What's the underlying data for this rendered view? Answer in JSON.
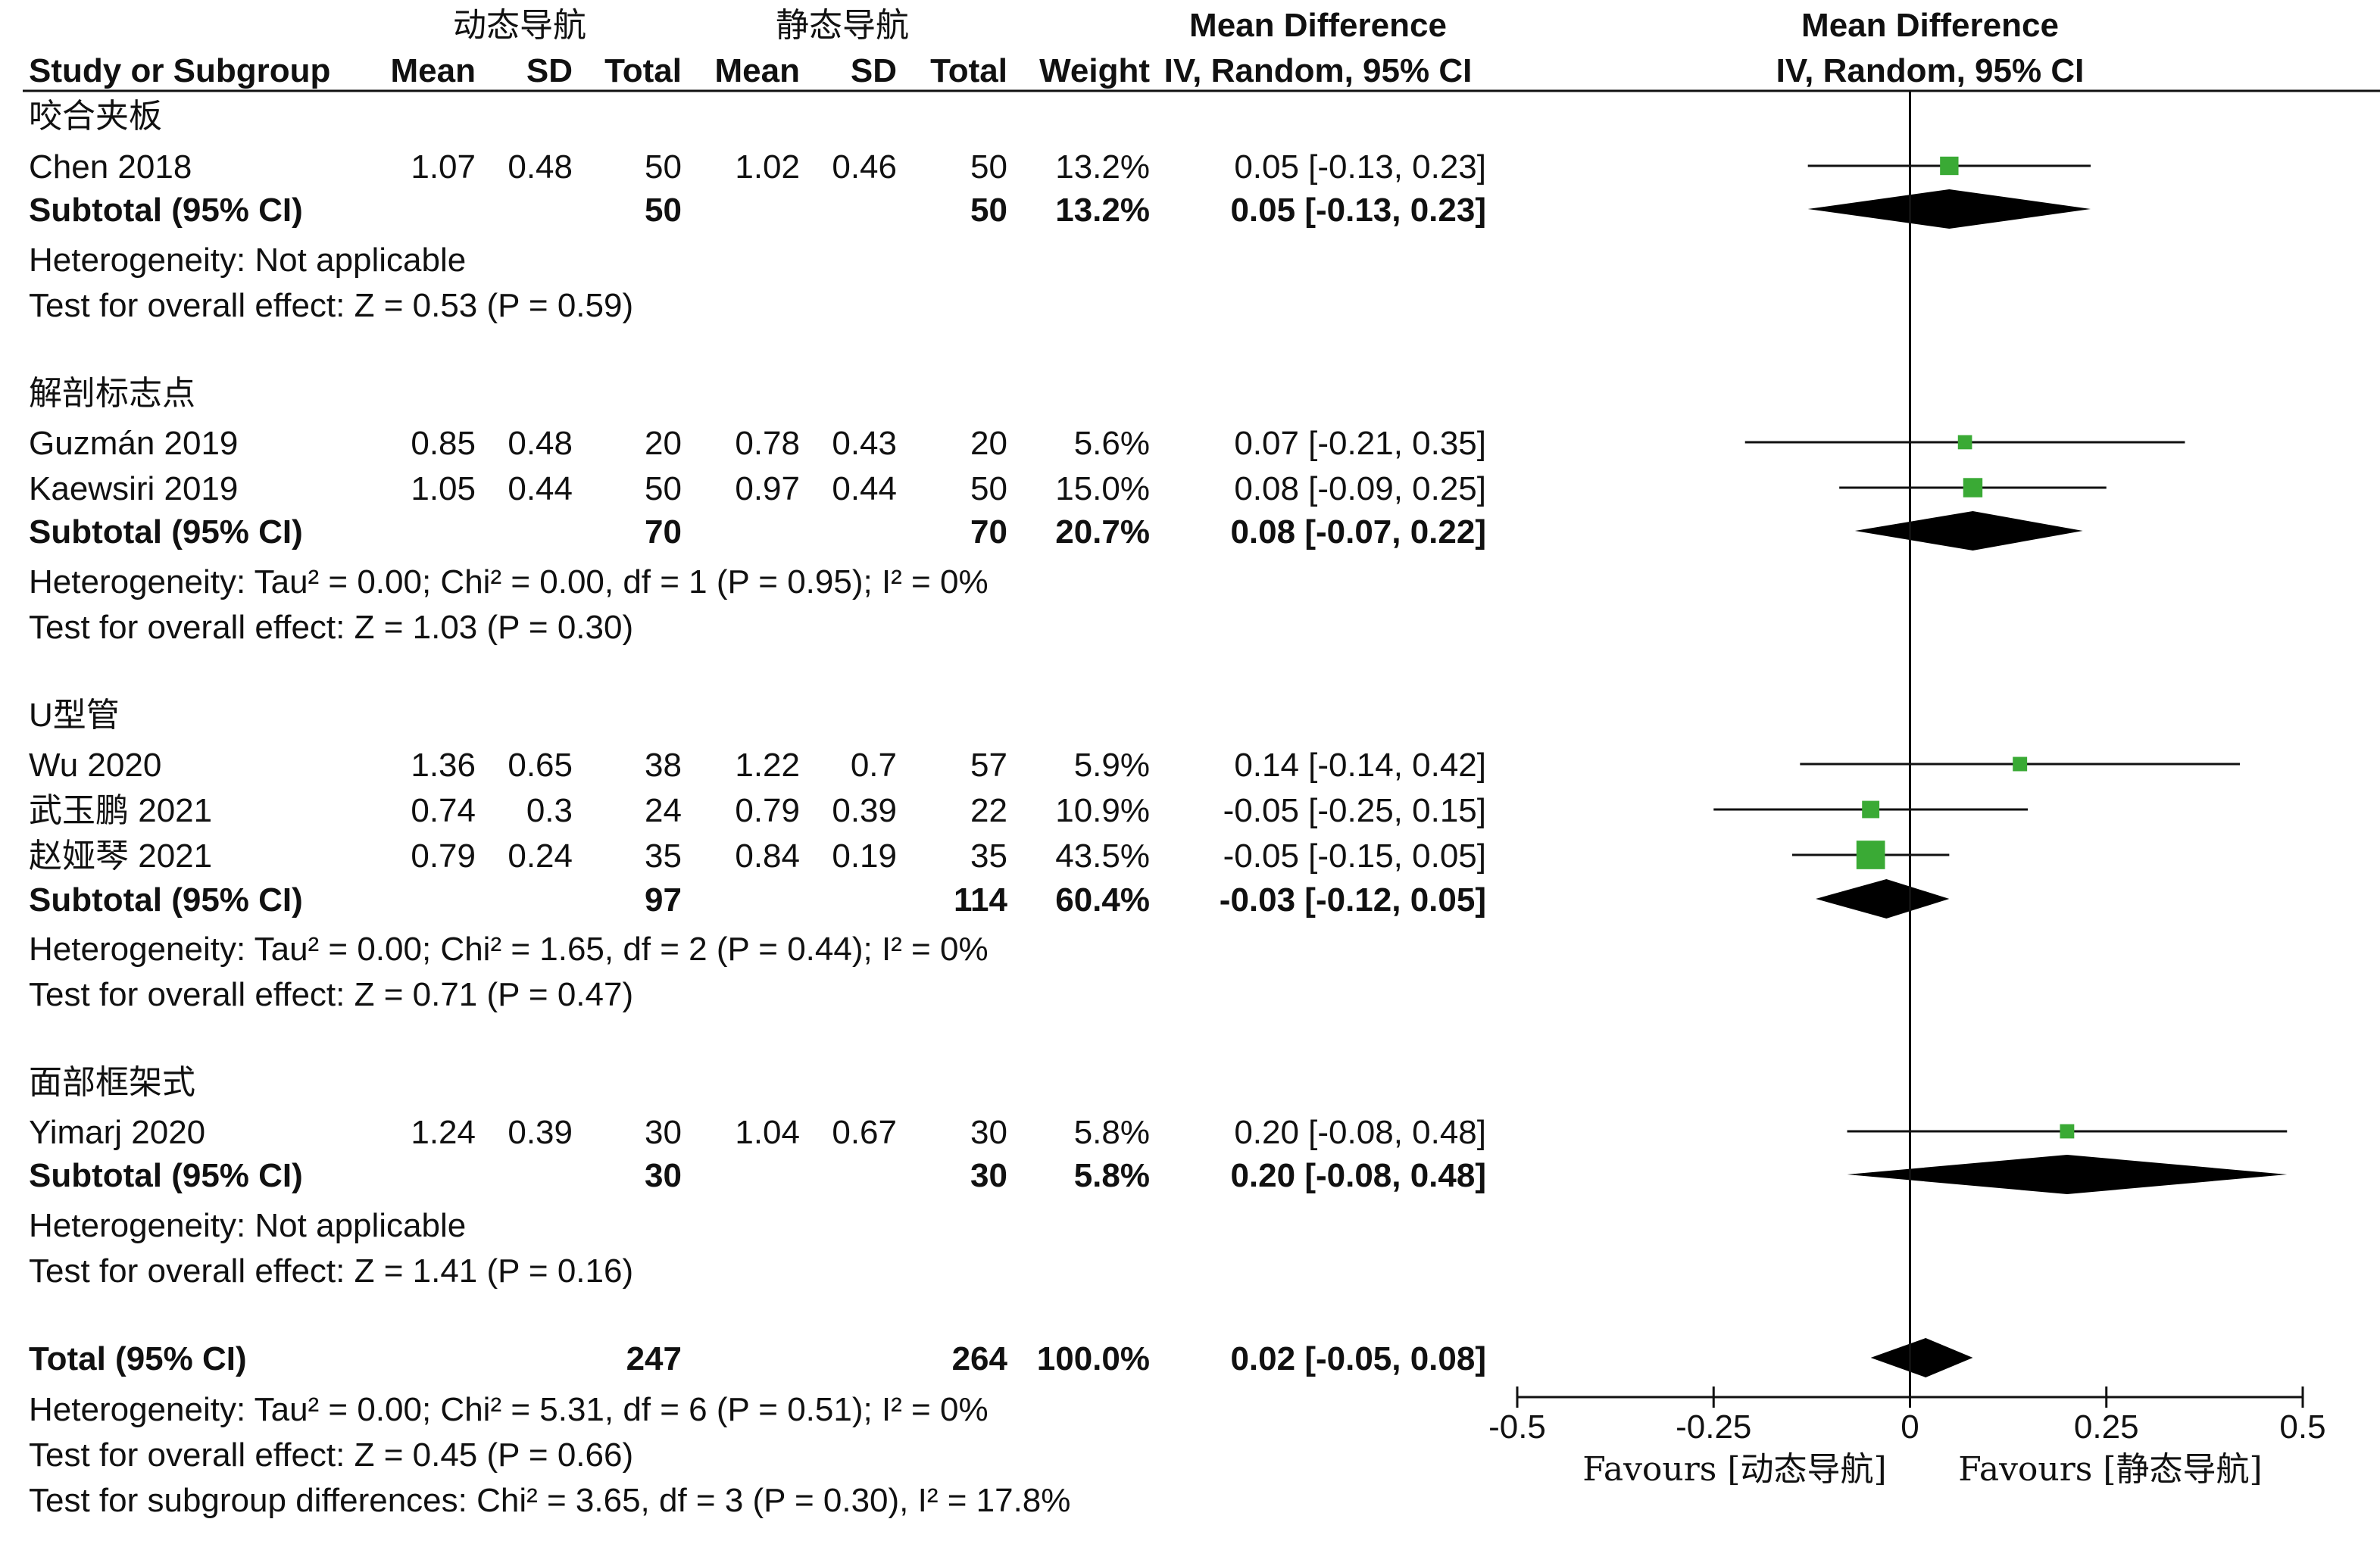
{
  "header": {
    "group1": "动态导航",
    "group2": "静态导航",
    "md_title": "Mean Difference",
    "md_sub": "IV, Random, 95% CI",
    "plot_title": "Mean Difference",
    "plot_sub": "IV, Random, 95% CI",
    "cols": {
      "study": "Study or Subgroup",
      "mean1": "Mean",
      "sd1": "SD",
      "total1": "Total",
      "mean2": "Mean",
      "sd2": "SD",
      "total2": "Total",
      "weight": "Weight"
    }
  },
  "chart_data": {
    "type": "forest",
    "xlim": [
      -0.5,
      0.5
    ],
    "ticks": [
      "-0.5",
      "-0.25",
      "0",
      "0.25",
      "0.5"
    ],
    "xlabel_left": "Favours [动态导航]",
    "xlabel_right": "Favours [静态导航]",
    "marker_color": "#3aaa35",
    "rows": [
      {
        "kind": "group",
        "label": "咬合夹板"
      },
      {
        "kind": "study",
        "study": "Chen 2018",
        "m1": "1.07",
        "sd1": "0.48",
        "n1": "50",
        "m2": "1.02",
        "sd2": "0.46",
        "n2": "50",
        "weight": "13.2%",
        "ci": "0.05 [-0.13, 0.23]",
        "md": 0.05,
        "lo": -0.13,
        "hi": 0.23,
        "w": 13.2
      },
      {
        "kind": "subtotal",
        "study": "Subtotal (95% CI)",
        "n1": "50",
        "n2": "50",
        "weight": "13.2%",
        "ci": "0.05 [-0.13, 0.23]",
        "md": 0.05,
        "lo": -0.13,
        "hi": 0.23
      },
      {
        "kind": "text",
        "text": "Heterogeneity: Not applicable"
      },
      {
        "kind": "text",
        "text": "Test for overall effect: Z = 0.53 (P = 0.59)"
      },
      {
        "kind": "group",
        "label": "解剖标志点"
      },
      {
        "kind": "study",
        "study": "Guzmán 2019",
        "m1": "0.85",
        "sd1": "0.48",
        "n1": "20",
        "m2": "0.78",
        "sd2": "0.43",
        "n2": "20",
        "weight": "5.6%",
        "ci": "0.07 [-0.21, 0.35]",
        "md": 0.07,
        "lo": -0.21,
        "hi": 0.35,
        "w": 5.6
      },
      {
        "kind": "study",
        "study": "Kaewsiri 2019",
        "m1": "1.05",
        "sd1": "0.44",
        "n1": "50",
        "m2": "0.97",
        "sd2": "0.44",
        "n2": "50",
        "weight": "15.0%",
        "ci": "0.08 [-0.09, 0.25]",
        "md": 0.08,
        "lo": -0.09,
        "hi": 0.25,
        "w": 15.0
      },
      {
        "kind": "subtotal",
        "study": "Subtotal (95% CI)",
        "n1": "70",
        "n2": "70",
        "weight": "20.7%",
        "ci": "0.08 [-0.07, 0.22]",
        "md": 0.08,
        "lo": -0.07,
        "hi": 0.22
      },
      {
        "kind": "text",
        "text": "Heterogeneity: Tau² = 0.00; Chi² = 0.00, df = 1 (P = 0.95); I² = 0%"
      },
      {
        "kind": "text",
        "text": "Test for overall effect: Z = 1.03 (P = 0.30)"
      },
      {
        "kind": "group",
        "label": "U型管"
      },
      {
        "kind": "study",
        "study": "Wu 2020",
        "m1": "1.36",
        "sd1": "0.65",
        "n1": "38",
        "m2": "1.22",
        "sd2": "0.7",
        "n2": "57",
        "weight": "5.9%",
        "ci": "0.14 [-0.14, 0.42]",
        "md": 0.14,
        "lo": -0.14,
        "hi": 0.42,
        "w": 5.9
      },
      {
        "kind": "study",
        "study": "武玉鹏 2021",
        "m1": "0.74",
        "sd1": "0.3",
        "n1": "24",
        "m2": "0.79",
        "sd2": "0.39",
        "n2": "22",
        "weight": "10.9%",
        "ci": "-0.05 [-0.25, 0.15]",
        "md": -0.05,
        "lo": -0.25,
        "hi": 0.15,
        "w": 10.9
      },
      {
        "kind": "study",
        "study": "赵娅琴 2021",
        "m1": "0.79",
        "sd1": "0.24",
        "n1": "35",
        "m2": "0.84",
        "sd2": "0.19",
        "n2": "35",
        "weight": "43.5%",
        "ci": "-0.05 [-0.15, 0.05]",
        "md": -0.05,
        "lo": -0.15,
        "hi": 0.05,
        "w": 43.5
      },
      {
        "kind": "subtotal",
        "study": "Subtotal (95% CI)",
        "n1": "97",
        "n2": "114",
        "weight": "60.4%",
        "ci": "-0.03 [-0.12, 0.05]",
        "md": -0.03,
        "lo": -0.12,
        "hi": 0.05
      },
      {
        "kind": "text",
        "text": "Heterogeneity: Tau² = 0.00; Chi² = 1.65, df = 2 (P = 0.44); I² = 0%"
      },
      {
        "kind": "text",
        "text": "Test for overall effect: Z = 0.71 (P = 0.47)"
      },
      {
        "kind": "group",
        "label": "面部框架式"
      },
      {
        "kind": "study",
        "study": "Yimarj 2020",
        "m1": "1.24",
        "sd1": "0.39",
        "n1": "30",
        "m2": "1.04",
        "sd2": "0.67",
        "n2": "30",
        "weight": "5.8%",
        "ci": "0.20 [-0.08, 0.48]",
        "md": 0.2,
        "lo": -0.08,
        "hi": 0.48,
        "w": 5.8
      },
      {
        "kind": "subtotal",
        "study": "Subtotal (95% CI)",
        "n1": "30",
        "n2": "30",
        "weight": "5.8%",
        "ci": "0.20 [-0.08, 0.48]",
        "md": 0.2,
        "lo": -0.08,
        "hi": 0.48
      },
      {
        "kind": "text",
        "text": "Heterogeneity: Not applicable"
      },
      {
        "kind": "text",
        "text": "Test for overall effect: Z = 1.41 (P = 0.16)"
      },
      {
        "kind": "total",
        "study": "Total (95% CI)",
        "n1": "247",
        "n2": "264",
        "weight": "100.0%",
        "ci": "0.02 [-0.05, 0.08]",
        "md": 0.02,
        "lo": -0.05,
        "hi": 0.08
      },
      {
        "kind": "text",
        "text": "Heterogeneity: Tau² = 0.00; Chi² = 5.31, df = 6 (P = 0.51); I² = 0%"
      },
      {
        "kind": "text",
        "text": "Test for overall effect: Z = 0.45 (P = 0.66)"
      },
      {
        "kind": "text",
        "text": "Test for subgroup differences: Chi² = 3.65, df = 3 (P = 0.30), I² = 17.8%"
      }
    ]
  }
}
